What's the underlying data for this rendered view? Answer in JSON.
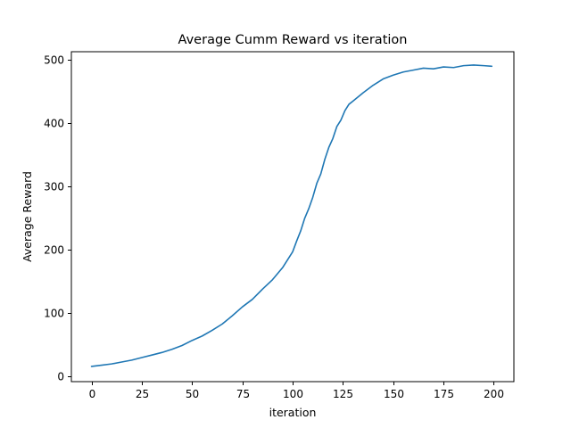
{
  "chart_data": {
    "type": "line",
    "title": "Average Cumm Reward vs iteration",
    "xlabel": "iteration",
    "ylabel": "Average Reward",
    "xlim": [
      -10,
      210
    ],
    "ylim": [
      -8,
      513
    ],
    "xticks": [
      0,
      25,
      50,
      75,
      100,
      125,
      150,
      175,
      200
    ],
    "yticks": [
      0,
      100,
      200,
      300,
      400,
      500
    ],
    "xtick_labels": [
      "0",
      "25",
      "50",
      "75",
      "100",
      "125",
      "150",
      "175",
      "200"
    ],
    "ytick_labels": [
      "0",
      "100",
      "200",
      "300",
      "400",
      "500"
    ],
    "grid": false,
    "legend": false,
    "line_color": "#1f77b4",
    "series": [
      {
        "x": [
          0,
          5,
          10,
          15,
          20,
          25,
          30,
          35,
          40,
          45,
          50,
          55,
          60,
          65,
          70,
          75,
          80,
          85,
          90,
          95,
          100,
          102,
          104,
          106,
          108,
          110,
          112,
          114,
          116,
          118,
          120,
          122,
          124,
          126,
          128,
          130,
          135,
          140,
          145,
          150,
          155,
          160,
          165,
          170,
          175,
          180,
          185,
          190,
          195,
          199
        ],
        "y": [
          16,
          18,
          20,
          23,
          26,
          30,
          34,
          38,
          43,
          49,
          57,
          64,
          73,
          83,
          96,
          110,
          122,
          138,
          153,
          172,
          197,
          214,
          230,
          250,
          265,
          283,
          305,
          320,
          343,
          362,
          376,
          395,
          405,
          420,
          430,
          435,
          448,
          460,
          470,
          476,
          481,
          484,
          487,
          486,
          489,
          488,
          491,
          492,
          491,
          490
        ]
      }
    ]
  }
}
